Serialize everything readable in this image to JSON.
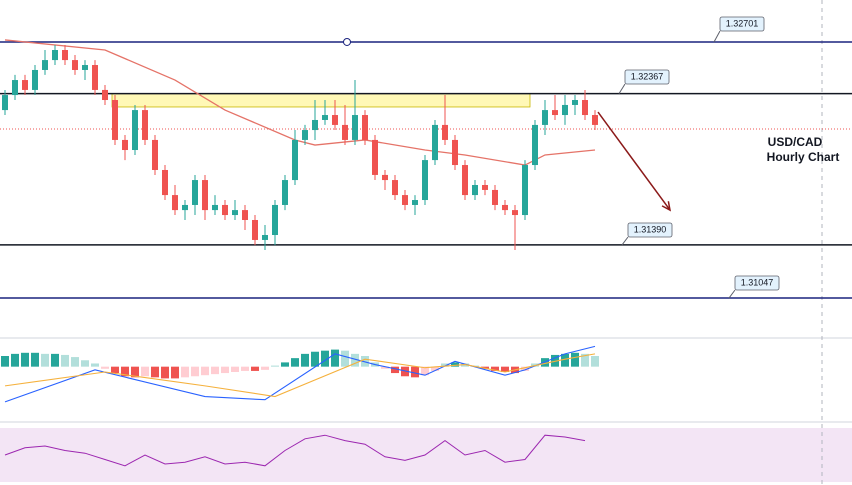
{
  "chart_data": {
    "type": "candlestick",
    "annotation_lines": [
      "USD/CAD",
      "Hourly Chart"
    ],
    "ylim": [
      1.30905,
      1.32972
    ],
    "up_color": "#26a69a",
    "down_color": "#ef5350",
    "open": [
      1.32261,
      1.32358,
      1.32455,
      1.32391,
      1.3252,
      1.32584,
      1.32649,
      1.32584,
      1.3252,
      1.32552,
      1.32391,
      1.32326,
      1.32068,
      1.32003,
      1.32261,
      1.32068,
      1.31874,
      1.31712,
      1.31615,
      1.31648,
      1.31809,
      1.31615,
      1.31648,
      1.31583,
      1.31615,
      1.31551,
      1.31422,
      1.31454,
      1.31648,
      1.31809,
      1.32068,
      1.32132,
      1.32197,
      1.32229,
      1.32165,
      1.32068,
      1.32229,
      1.32068,
      1.31842,
      1.31809,
      1.31712,
      1.31648,
      1.3168,
      1.31938,
      1.32165,
      1.32068,
      1.31906,
      1.31712,
      1.31777,
      1.31745,
      1.31648,
      1.31615,
      1.31583,
      1.31906,
      1.32165,
      1.32261,
      1.32229,
      1.32294,
      1.32326,
      1.32229
    ],
    "high": [
      1.32391,
      1.32488,
      1.32488,
      1.32552,
      1.32649,
      1.32681,
      1.32681,
      1.32617,
      1.32584,
      1.32584,
      1.32423,
      1.32358,
      1.321,
      1.32294,
      1.32294,
      1.321,
      1.31906,
      1.31777,
      1.3168,
      1.31842,
      1.31842,
      1.31712,
      1.3168,
      1.3168,
      1.31648,
      1.31583,
      1.31519,
      1.3168,
      1.31842,
      1.32132,
      1.32165,
      1.32326,
      1.32326,
      1.32326,
      1.32294,
      1.32455,
      1.32261,
      1.321,
      1.31874,
      1.31842,
      1.31745,
      1.31712,
      1.31971,
      1.32197,
      1.32358,
      1.321,
      1.31938,
      1.31809,
      1.31809,
      1.31777,
      1.3168,
      1.31648,
      1.31938,
      1.32197,
      1.32326,
      1.32358,
      1.32358,
      1.32358,
      1.32391,
      1.32261
    ],
    "low": [
      1.32229,
      1.32326,
      1.32358,
      1.32358,
      1.32488,
      1.32552,
      1.32552,
      1.32488,
      1.32455,
      1.32358,
      1.32294,
      1.32035,
      1.31938,
      1.31971,
      1.32035,
      1.31842,
      1.3168,
      1.31583,
      1.31551,
      1.31583,
      1.31551,
      1.31583,
      1.31551,
      1.31551,
      1.31486,
      1.31389,
      1.31357,
      1.31389,
      1.31615,
      1.31777,
      1.32035,
      1.32068,
      1.32165,
      1.32132,
      1.32035,
      1.32035,
      1.32035,
      1.31809,
      1.31745,
      1.3168,
      1.31615,
      1.31583,
      1.31648,
      1.31906,
      1.32035,
      1.31874,
      1.3168,
      1.3168,
      1.31712,
      1.31615,
      1.31583,
      1.31357,
      1.31551,
      1.31874,
      1.321,
      1.32197,
      1.32165,
      1.32229,
      1.32197,
      1.32132
    ],
    "close": [
      1.32358,
      1.32455,
      1.32391,
      1.3252,
      1.32584,
      1.32649,
      1.32584,
      1.3252,
      1.32552,
      1.32391,
      1.32326,
      1.32068,
      1.32003,
      1.32261,
      1.32068,
      1.31874,
      1.31712,
      1.31615,
      1.31648,
      1.31809,
      1.31615,
      1.31648,
      1.31583,
      1.31615,
      1.31551,
      1.31422,
      1.31454,
      1.31648,
      1.31809,
      1.32068,
      1.32132,
      1.32197,
      1.32229,
      1.32165,
      1.32068,
      1.32229,
      1.32068,
      1.31842,
      1.31809,
      1.31712,
      1.31648,
      1.3168,
      1.31938,
      1.32165,
      1.32068,
      1.31906,
      1.31712,
      1.31777,
      1.31745,
      1.31648,
      1.31615,
      1.31583,
      1.31906,
      1.32165,
      1.32261,
      1.32229,
      1.32294,
      1.32326,
      1.32229,
      1.32165
    ],
    "ma": {
      "color": "#e57368",
      "x": [
        0,
        10,
        17,
        22,
        29,
        31,
        36,
        42,
        46,
        52,
        54,
        59
      ],
      "values": [
        1.32714,
        1.32649,
        1.32455,
        1.32261,
        1.32068,
        1.32035,
        1.32068,
        1.32003,
        1.31971,
        1.31906,
        1.31971,
        1.32003
      ]
    },
    "levels": {
      "values": [
        1.32701,
        1.32367,
        1.3139,
        1.31047
      ],
      "value_labels": [
        "1.32701",
        "1.32367",
        "1.31390",
        "1.31047"
      ],
      "colors": [
        "#1a237e",
        "#131722",
        "#131722",
        "#1a237e"
      ]
    },
    "current_price": 1.32139,
    "zone": {
      "x": [
        10.7,
        52.5
      ],
      "y": [
        1.32281,
        1.32367
      ],
      "color": "#fff59d"
    },
    "arrow": {
      "x": [
        59.3,
        66.5
      ],
      "y": [
        1.32248,
        1.31615
      ],
      "color": "#8b1a1a"
    },
    "macd": {
      "ylim": [
        -50,
        25
      ],
      "histogram": [
        10,
        12,
        13,
        13,
        12,
        12,
        11,
        9,
        6,
        3,
        -2,
        -6,
        -9,
        -10,
        -9,
        -10,
        -11,
        -11,
        -10,
        -9,
        -8,
        -7,
        -6,
        -5,
        -4,
        -4,
        -3,
        1,
        4,
        8,
        12,
        14,
        15,
        16,
        15,
        12,
        10,
        4,
        -2,
        -6,
        -9,
        -10,
        -8,
        -4,
        3,
        4,
        3,
        1,
        -2,
        -4,
        -5,
        -6,
        -4,
        3,
        8,
        11,
        12,
        13,
        12,
        10
      ],
      "line": {
        "color": "#2962ff",
        "x": [
          0,
          9,
          20,
          26,
          33,
          37,
          42,
          45,
          50,
          52,
          56,
          59
        ],
        "values": [
          -33,
          -3,
          -28,
          -31,
          12,
          2,
          -8,
          5,
          -8,
          -3,
          12,
          19
        ]
      },
      "signal": {
        "color": "#f5b13d",
        "x": [
          0,
          10,
          20,
          27,
          36,
          42,
          46,
          50,
          56,
          59
        ],
        "values": [
          -18,
          -5,
          -18,
          -28,
          7,
          -1,
          2,
          -5,
          7,
          12
        ]
      }
    },
    "rsi": {
      "ylim": [
        20,
        80
      ],
      "color": "#9c27b0",
      "x": [
        0,
        2,
        4,
        6,
        8,
        10,
        12,
        14,
        16,
        18,
        20,
        22,
        24,
        26,
        28,
        30,
        32,
        34,
        36,
        38,
        40,
        42,
        44,
        46,
        48,
        50,
        52,
        54,
        56,
        58
      ],
      "values": [
        50,
        58,
        60,
        55,
        52,
        45,
        38,
        50,
        40,
        42,
        48,
        40,
        42,
        38,
        55,
        68,
        72,
        66,
        62,
        48,
        44,
        50,
        66,
        50,
        55,
        42,
        45,
        72,
        70,
        66
      ]
    }
  }
}
